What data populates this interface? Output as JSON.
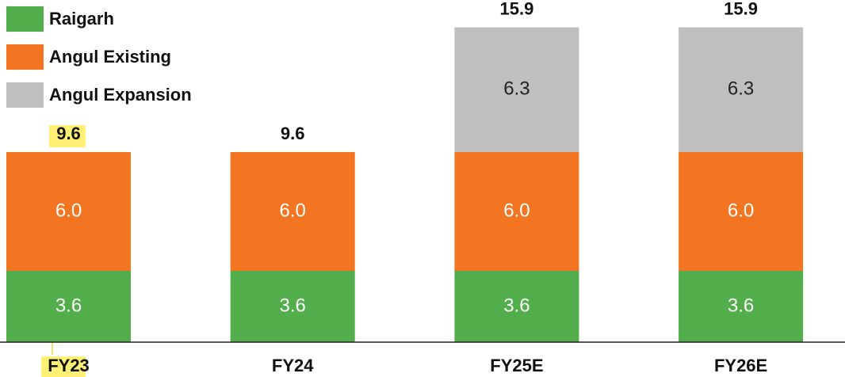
{
  "chart_data": {
    "type": "stacked-bar",
    "categories": [
      "FY23",
      "FY24",
      "FY25E",
      "FY26E"
    ],
    "series": [
      {
        "name": "Raigarh",
        "color": "#52ae4a",
        "values": [
          3.6,
          3.6,
          3.6,
          3.6
        ]
      },
      {
        "name": "Angul Existing",
        "color": "#f37521",
        "values": [
          6.0,
          6.0,
          6.0,
          6.0
        ],
        "value_labels": [
          "6.0",
          "6.0",
          "6.0",
          "6.0"
        ]
      },
      {
        "name": "Angul Expansion",
        "color": "#bfbfbf",
        "values": [
          null,
          null,
          6.3,
          6.3
        ]
      }
    ],
    "totals": [
      9.6,
      9.6,
      15.9,
      15.9
    ],
    "ylim": [
      0,
      17.28
    ]
  }
}
